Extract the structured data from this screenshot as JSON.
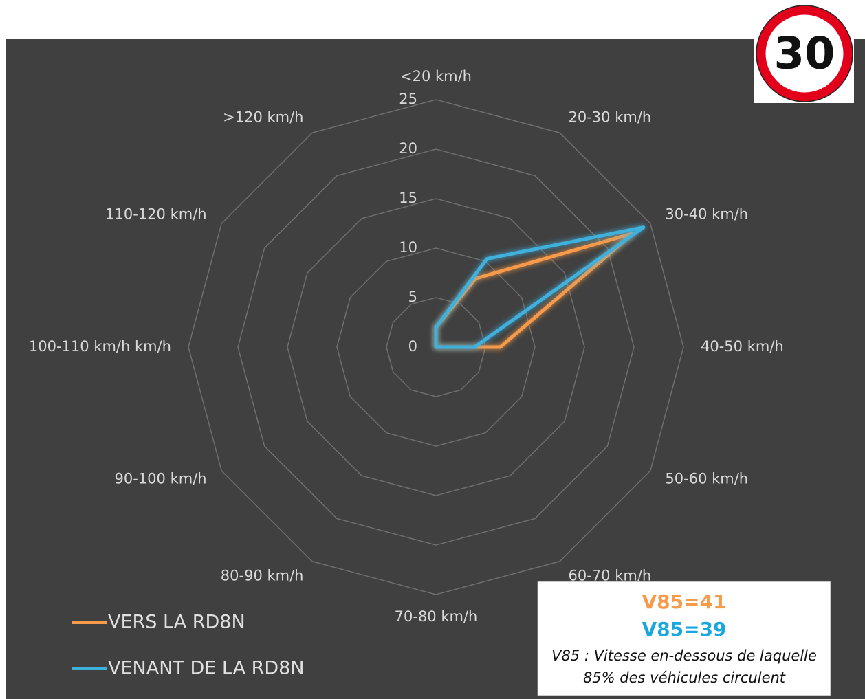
{
  "chart_data": {
    "type": "radar",
    "categories": [
      "<20 km/h",
      "20-30 km/h",
      "30-40 km/h",
      "40-50 km/h",
      "50-60 km/h",
      "60-70 km/h",
      "70-80 km/h",
      "80-90 km/h",
      "90-100 km/h",
      "100-110 km/h km/h",
      "110-120 km/h",
      ">120 km/h"
    ],
    "series": [
      {
        "name": "VERS LA RD8N",
        "color": "#f79a4a",
        "values": [
          2,
          8,
          23,
          6.5,
          0,
          0,
          0,
          0,
          0,
          0,
          0,
          0
        ]
      },
      {
        "name": "VENANT DE LA RD8N",
        "color": "#3fb0dc",
        "values": [
          2,
          10.3,
          24.2,
          3.9,
          0,
          0,
          0,
          0,
          0,
          0,
          0,
          0
        ]
      }
    ],
    "ylim": [
      0,
      25
    ],
    "yticks": [
      0,
      5,
      10,
      15,
      20,
      25
    ],
    "grid": true,
    "legend": "bottom-left",
    "annotations": [
      "V85=41",
      "V85=39",
      "V85 : Vitesse en-dessous de laquelle",
      "85% des véhicules circulent"
    ],
    "sign": "30"
  }
}
